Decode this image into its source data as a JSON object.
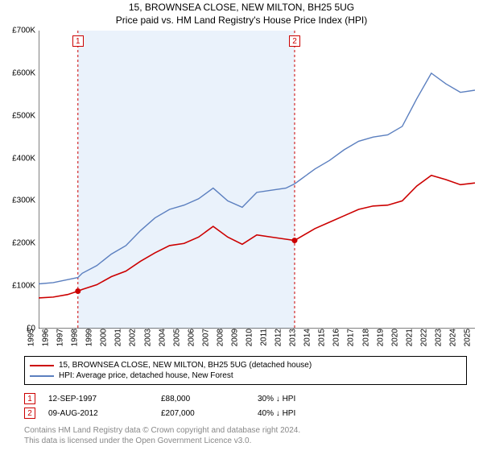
{
  "title": "15, BROWNSEA CLOSE, NEW MILTON, BH25 5UG",
  "subtitle": "Price paid vs. HM Land Registry's House Price Index (HPI)",
  "chart": {
    "background_color": "#ffffff",
    "axis_color": "#000000",
    "ylim": [
      0,
      700000
    ],
    "ytick_step": 100000,
    "yticks": [
      "£0",
      "£100K",
      "£200K",
      "£300K",
      "£400K",
      "£500K",
      "£600K",
      "£700K"
    ],
    "x_years": [
      "1995",
      "1996",
      "1997",
      "1998",
      "1999",
      "2000",
      "2001",
      "2002",
      "2003",
      "2004",
      "2005",
      "2006",
      "2007",
      "2008",
      "2009",
      "2010",
      "2011",
      "2012",
      "2013",
      "2014",
      "2015",
      "2016",
      "2017",
      "2018",
      "2019",
      "2020",
      "2021",
      "2022",
      "2023",
      "2024",
      "2025"
    ],
    "shade_band": {
      "start_year": 1997.7,
      "end_year": 2012.6,
      "fill": "#eaf2fb"
    },
    "series": [
      {
        "name": "hpi",
        "color": "#5b7fbf",
        "width": 1.4,
        "label": "HPI: Average price, detached house, New Forest",
        "points": [
          [
            1995,
            105000
          ],
          [
            1996,
            108000
          ],
          [
            1997,
            115000
          ],
          [
            1997.7,
            120000
          ],
          [
            1998,
            130000
          ],
          [
            1999,
            148000
          ],
          [
            2000,
            175000
          ],
          [
            2001,
            195000
          ],
          [
            2002,
            230000
          ],
          [
            2003,
            260000
          ],
          [
            2004,
            280000
          ],
          [
            2005,
            290000
          ],
          [
            2006,
            305000
          ],
          [
            2007,
            330000
          ],
          [
            2008,
            300000
          ],
          [
            2009,
            285000
          ],
          [
            2010,
            320000
          ],
          [
            2011,
            325000
          ],
          [
            2012,
            330000
          ],
          [
            2012.6,
            340000
          ],
          [
            2013,
            350000
          ],
          [
            2014,
            375000
          ],
          [
            2015,
            395000
          ],
          [
            2016,
            420000
          ],
          [
            2017,
            440000
          ],
          [
            2018,
            450000
          ],
          [
            2019,
            455000
          ],
          [
            2020,
            475000
          ],
          [
            2021,
            540000
          ],
          [
            2022,
            600000
          ],
          [
            2023,
            575000
          ],
          [
            2024,
            555000
          ],
          [
            2025,
            560000
          ]
        ]
      },
      {
        "name": "property",
        "color": "#cc0000",
        "width": 1.6,
        "label": "15, BROWNSEA CLOSE, NEW MILTON, BH25 5UG (detached house)",
        "points": [
          [
            1995,
            72000
          ],
          [
            1996,
            74000
          ],
          [
            1997,
            80000
          ],
          [
            1997.7,
            88000
          ],
          [
            1998,
            92000
          ],
          [
            1999,
            103000
          ],
          [
            2000,
            122000
          ],
          [
            2001,
            135000
          ],
          [
            2002,
            158000
          ],
          [
            2003,
            178000
          ],
          [
            2004,
            195000
          ],
          [
            2005,
            200000
          ],
          [
            2006,
            215000
          ],
          [
            2007,
            240000
          ],
          [
            2008,
            215000
          ],
          [
            2009,
            198000
          ],
          [
            2010,
            220000
          ],
          [
            2011,
            215000
          ],
          [
            2012,
            210000
          ],
          [
            2012.6,
            207000
          ],
          [
            2013,
            215000
          ],
          [
            2014,
            235000
          ],
          [
            2015,
            250000
          ],
          [
            2016,
            265000
          ],
          [
            2017,
            280000
          ],
          [
            2018,
            288000
          ],
          [
            2019,
            290000
          ],
          [
            2020,
            300000
          ],
          [
            2021,
            335000
          ],
          [
            2022,
            360000
          ],
          [
            2023,
            350000
          ],
          [
            2024,
            338000
          ],
          [
            2025,
            342000
          ]
        ]
      }
    ],
    "markers": [
      {
        "id": "1",
        "year": 1997.7,
        "value": 88000,
        "color": "#cc0000",
        "dash_color": "#cc0000"
      },
      {
        "id": "2",
        "year": 2012.6,
        "value": 207000,
        "color": "#cc0000",
        "dash_color": "#cc0000"
      }
    ]
  },
  "transactions": [
    {
      "id": "1",
      "date": "12-SEP-1997",
      "price": "£88,000",
      "delta": "30% ↓ HPI",
      "color": "#cc0000"
    },
    {
      "id": "2",
      "date": "09-AUG-2012",
      "price": "£207,000",
      "delta": "40% ↓ HPI",
      "color": "#cc0000"
    }
  ],
  "footer_lines": [
    "Contains HM Land Registry data © Crown copyright and database right 2024.",
    "This data is licensed under the Open Government Licence v3.0."
  ],
  "col_widths": {
    "date": "140px",
    "price": "120px",
    "delta": "120px"
  }
}
